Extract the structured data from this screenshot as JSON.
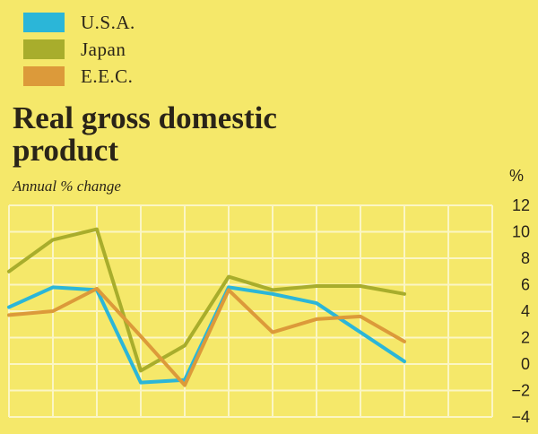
{
  "chart_data": {
    "type": "line",
    "title": "Real gross domestic product",
    "subtitle": "Annual % change",
    "unit": "%",
    "x": [
      0,
      1,
      2,
      3,
      4,
      5,
      6,
      7,
      8,
      9,
      10,
      11
    ],
    "ylim": [
      -4,
      12
    ],
    "y_ticks": [
      12,
      10,
      8,
      6,
      4,
      2,
      0,
      -2,
      -4
    ],
    "y_tick_labels": [
      "12",
      "10",
      "8",
      "6",
      "4",
      "2",
      "0",
      "−2",
      "−4"
    ],
    "grid": true,
    "legend_position": "top-left",
    "series": [
      {
        "name": "U.S.A.",
        "color": "#2bb6d8",
        "values": [
          4.3,
          5.8,
          5.6,
          -1.4,
          -1.2,
          5.8,
          5.3,
          4.6,
          2.4,
          0.2,
          null,
          null
        ]
      },
      {
        "name": "Japan",
        "color": "#a8ad2c",
        "values": [
          7.0,
          9.4,
          10.2,
          -0.5,
          1.4,
          6.6,
          5.6,
          5.9,
          5.9,
          5.3,
          null,
          null
        ]
      },
      {
        "name": "E.E.C.",
        "color": "#dc9a3a",
        "values": [
          3.7,
          4.0,
          5.7,
          2.1,
          -1.6,
          5.6,
          2.4,
          3.4,
          3.6,
          1.7,
          null,
          null
        ]
      }
    ]
  }
}
